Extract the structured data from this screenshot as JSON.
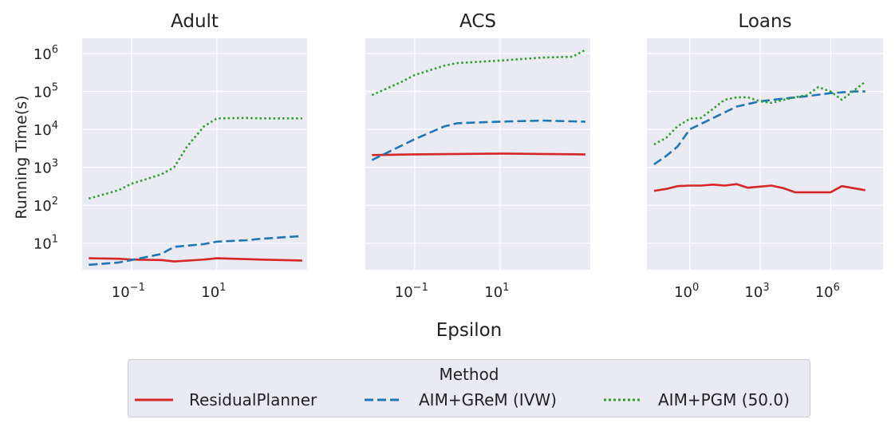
{
  "chart_data": [
    {
      "type": "line",
      "title": "Adult",
      "xscale": "log10",
      "xlim": [
        0.007,
        1300
      ],
      "ylim_log10": [
        0.3,
        6.4
      ],
      "x_ticks": [
        {
          "value": 0.1,
          "base": "10",
          "exp": "−1"
        },
        {
          "value": 10,
          "base": "10",
          "exp": "1"
        }
      ],
      "series": [
        {
          "name": "ResidualPlanner",
          "x": [
            0.01,
            0.05,
            0.1,
            0.5,
            1,
            5,
            10,
            50,
            100,
            1000
          ],
          "y": [
            4,
            3.9,
            3.7,
            3.6,
            3.3,
            3.7,
            4,
            3.8,
            3.7,
            3.5
          ]
        },
        {
          "name": "AIM+GReM (IVW)",
          "x": [
            0.01,
            0.05,
            0.1,
            0.5,
            1,
            5,
            10,
            50,
            100,
            1000
          ],
          "y": [
            2.7,
            3.1,
            3.6,
            5.2,
            8,
            9.5,
            11,
            12,
            13,
            15.5
          ]
        },
        {
          "name": "AIM+PGM (50.0)",
          "x": [
            0.01,
            0.05,
            0.1,
            0.5,
            1,
            2,
            5,
            10,
            50,
            100,
            1000
          ],
          "y": [
            150,
            250,
            370,
            650,
            1000,
            3500,
            12000,
            19500,
            20000,
            19500,
            19500
          ]
        }
      ]
    },
    {
      "type": "line",
      "title": "ACS",
      "xscale": "log10",
      "xlim": [
        0.007,
        1300
      ],
      "ylim_log10": [
        0.3,
        6.4
      ],
      "x_ticks": [
        {
          "value": 0.1,
          "base": "10",
          "exp": "−1"
        },
        {
          "value": 10,
          "base": "10",
          "exp": "1"
        }
      ],
      "series": [
        {
          "name": "ResidualPlanner",
          "x": [
            0.01,
            0.1,
            1,
            10,
            100,
            1000
          ],
          "y": [
            2100,
            2200,
            2250,
            2300,
            2250,
            2200
          ]
        },
        {
          "name": "AIM+GReM (IVW)",
          "x": [
            0.01,
            0.1,
            0.5,
            1,
            10,
            100,
            1000
          ],
          "y": [
            1550,
            5500,
            12000,
            14500,
            16000,
            17000,
            16000
          ]
        },
        {
          "name": "AIM+PGM (50.0)",
          "x": [
            0.01,
            0.05,
            0.1,
            0.5,
            1,
            10,
            100,
            500,
            1000
          ],
          "y": [
            80000,
            180000,
            270000,
            480000,
            560000,
            650000,
            780000,
            820000,
            1250000
          ]
        }
      ]
    },
    {
      "type": "line",
      "title": "Loans",
      "xscale": "log10",
      "xlim": [
        0.015,
        170000000
      ],
      "ylim_log10": [
        0.3,
        6.4
      ],
      "x_ticks": [
        {
          "value": 1,
          "base": "10",
          "exp": "0"
        },
        {
          "value": 1000,
          "base": "10",
          "exp": "3"
        },
        {
          "value": 1000000,
          "base": "10",
          "exp": "6"
        }
      ],
      "series": [
        {
          "name": "ResidualPlanner",
          "x": [
            0.03,
            0.1,
            0.3,
            1,
            3,
            10,
            30,
            100,
            300,
            1000,
            3000,
            10000,
            30000,
            100000,
            1000000,
            3000000,
            30000000
          ],
          "y": [
            240,
            270,
            320,
            330,
            330,
            350,
            330,
            360,
            290,
            310,
            330,
            280,
            220,
            220,
            220,
            320,
            250
          ]
        },
        {
          "name": "AIM+GReM (IVW)",
          "x": [
            0.03,
            0.1,
            0.3,
            1,
            10,
            100,
            1000,
            10000,
            100000,
            1000000,
            10000000,
            30000000
          ],
          "y": [
            1200,
            2000,
            3500,
            10000,
            20000,
            40000,
            55000,
            65000,
            75000,
            90000,
            100000,
            100000
          ]
        },
        {
          "name": "AIM+PGM (50.0)",
          "x": [
            0.03,
            0.1,
            0.3,
            1,
            3,
            10,
            30,
            100,
            300,
            1000,
            3000,
            10000,
            30000,
            100000,
            300000,
            1000000,
            3000000,
            30000000
          ],
          "y": [
            4000,
            6000,
            12000,
            19000,
            20000,
            35000,
            60000,
            70000,
            70000,
            55000,
            50000,
            60000,
            70000,
            80000,
            130000,
            100000,
            60000,
            180000
          ]
        }
      ]
    }
  ],
  "y_ticks": [
    {
      "exp10": 1,
      "base": "10",
      "exp": "1"
    },
    {
      "exp10": 2,
      "base": "10",
      "exp": "2"
    },
    {
      "exp10": 3,
      "base": "10",
      "exp": "3"
    },
    {
      "exp10": 4,
      "base": "10",
      "exp": "4"
    },
    {
      "exp10": 5,
      "base": "10",
      "exp": "5"
    },
    {
      "exp10": 6,
      "base": "10",
      "exp": "6"
    }
  ],
  "ylabel": "Running Time(s)",
  "xlabel": "Epsilon",
  "legend": {
    "title": "Method",
    "placement": "bottom-center",
    "entries": [
      {
        "label": "ResidualPlanner",
        "color": "#d62728",
        "dash": "solid"
      },
      {
        "label": "AIM+GReM (IVW)",
        "color": "#1f77b4",
        "dash": "dashed"
      },
      {
        "label": "AIM+PGM (50.0)",
        "color": "#2ca02c",
        "dash": "dotted"
      }
    ]
  },
  "colors": {
    "panel_bg": "#eaeaf2",
    "grid": "#ffffff",
    "text": "#222222"
  }
}
